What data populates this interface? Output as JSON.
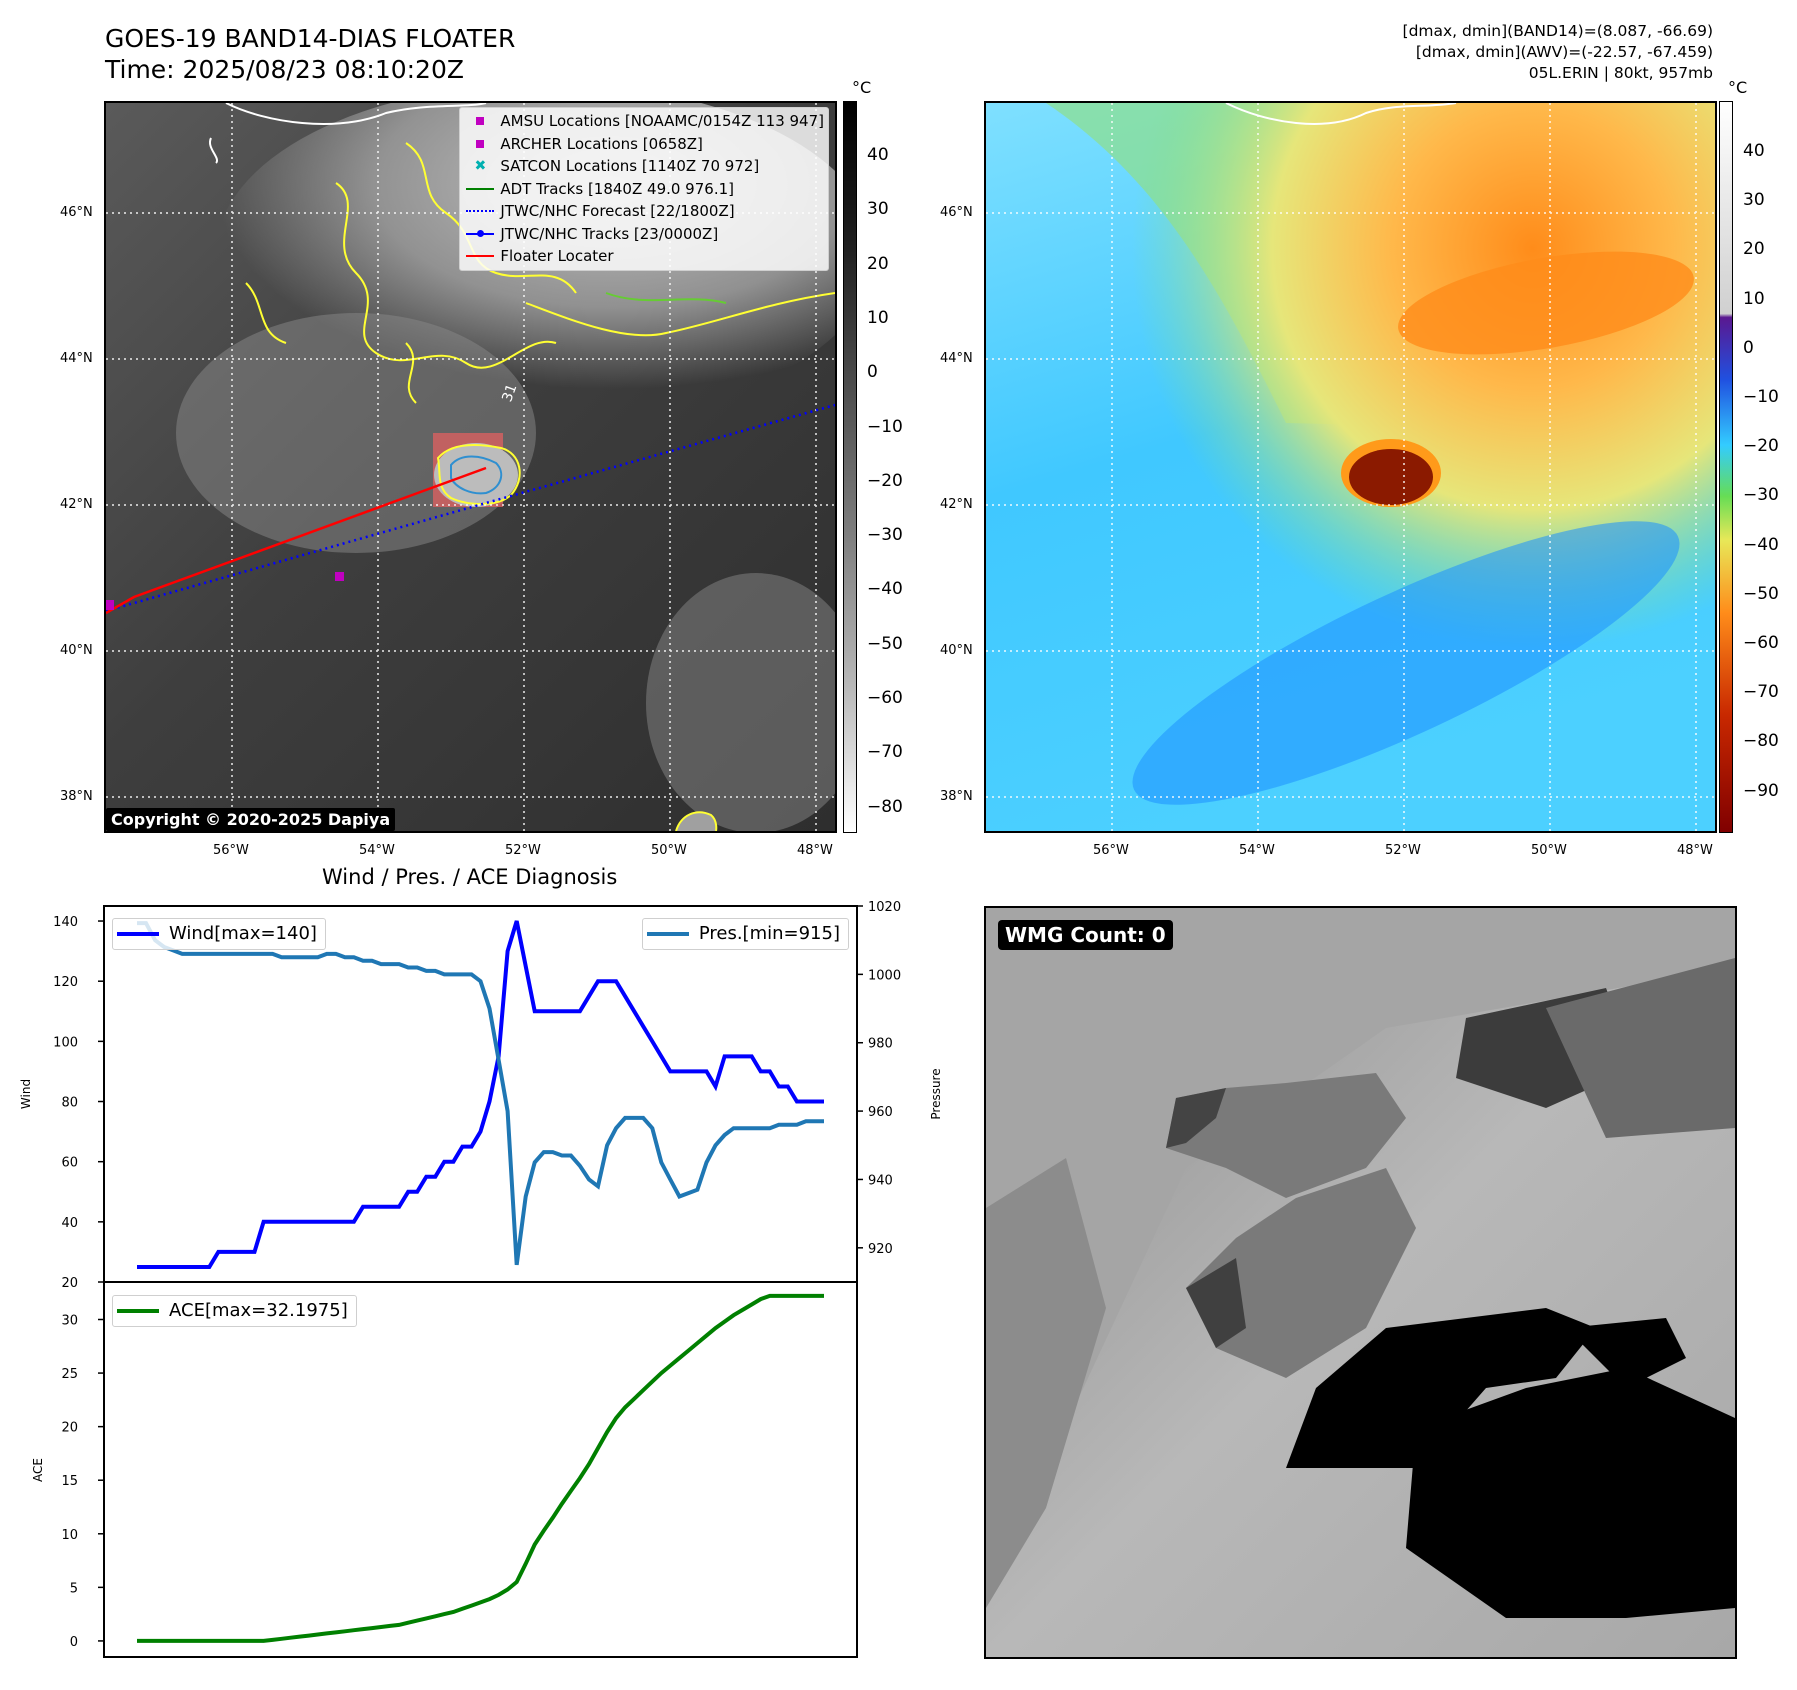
{
  "header": {
    "title_line1": "GOES-19 BAND14-DIAS FLOATER",
    "title_line2": "Time: 2025/08/23 08:10:20Z",
    "info_line1": "[dmax, dmin](BAND14)=(8.087, -66.69)",
    "info_line2": "[dmax, dmin](AWV)=(-22.57, -67.459)",
    "info_line3": "05L.ERIN | 80kt, 957mb"
  },
  "map": {
    "lat_labels": [
      "46°N",
      "44°N",
      "42°N",
      "40°N",
      "38°N"
    ],
    "lon_labels": [
      "56°W",
      "54°W",
      "52°W",
      "50°W",
      "48°W"
    ],
    "copyright": "Copyright © 2020-2025 Dapiya",
    "storm_label": "31",
    "legend": [
      {
        "label": "AMSU Locations [NOAAMC/0154Z 113 947]",
        "icon": "magenta-square-marker",
        "color": "#c000c0"
      },
      {
        "label": "ARCHER Locations [0658Z]",
        "icon": "magenta-square-marker",
        "color": "#c000c0"
      },
      {
        "label": "SATCON Locations [1140Z 70 972]",
        "icon": "cyan-x-marker",
        "color": "#00b0b0"
      },
      {
        "label": "ADT Tracks [1840Z 49.0 976.1]",
        "icon": "green-line",
        "color": "#008000"
      },
      {
        "label": "JTWC/NHC Forecast [22/1800Z]",
        "icon": "blue-dotted-line",
        "color": "#0000ff"
      },
      {
        "label": "JTWC/NHC Tracks [23/0000Z]",
        "icon": "blue-line-dot",
        "color": "#0000ff"
      },
      {
        "label": "Floater Locater",
        "icon": "red-line",
        "color": "#ff0000"
      }
    ],
    "colorbar_band14": {
      "unit": "°C",
      "ticks": [
        "40",
        "30",
        "20",
        "10",
        "0",
        "−10",
        "−20",
        "−30",
        "−40",
        "−50",
        "−60",
        "−70",
        "−80"
      ]
    },
    "colorbar_awv": {
      "unit": "°C",
      "ticks": [
        "40",
        "30",
        "20",
        "10",
        "0",
        "−10",
        "−20",
        "−30",
        "−40",
        "−50",
        "−60",
        "−70",
        "−80",
        "−90"
      ]
    }
  },
  "diagnosis": {
    "title": "Wind / Pres. / ACE Diagnosis",
    "wind_ylabel": "Wind",
    "pressure_ylabel": "Pressure",
    "ace_ylabel": "ACE",
    "wind_legend": "Wind[max=140]",
    "pres_legend": "Pres.[min=915]",
    "ace_legend": "ACE[max=32.1975]",
    "wind_color": "#0000ff",
    "pres_color": "#1f77b4",
    "ace_color": "#008000"
  },
  "wmg": {
    "label": "WMG Count: 0"
  },
  "chart_data": [
    {
      "type": "line",
      "title": "",
      "xlabel": "",
      "ylabel": "Wind",
      "ylim": [
        20,
        145
      ],
      "yticks": [
        20,
        40,
        60,
        80,
        100,
        120,
        140
      ],
      "series": [
        {
          "name": "Wind[max=140]",
          "axis": "left",
          "values": [
            25,
            25,
            25,
            25,
            25,
            25,
            25,
            25,
            25,
            30,
            30,
            30,
            30,
            30,
            40,
            40,
            40,
            40,
            40,
            40,
            40,
            40,
            40,
            40,
            40,
            45,
            45,
            45,
            45,
            45,
            50,
            50,
            55,
            55,
            60,
            60,
            65,
            65,
            70,
            80,
            95,
            130,
            140,
            125,
            110,
            110,
            110,
            110,
            110,
            110,
            115,
            120,
            120,
            120,
            115,
            110,
            105,
            100,
            95,
            90,
            90,
            90,
            90,
            90,
            85,
            95,
            95,
            95,
            95,
            90,
            90,
            85,
            85,
            80,
            80,
            80,
            80
          ]
        }
      ]
    },
    {
      "type": "line",
      "title": "",
      "xlabel": "",
      "ylabel": "Pressure",
      "ylim": [
        910,
        1020
      ],
      "yticks": [
        920,
        940,
        960,
        980,
        1000,
        1020
      ],
      "series": [
        {
          "name": "Pres.[min=915]",
          "axis": "right",
          "values": [
            1015,
            1015,
            1010,
            1008,
            1007,
            1006,
            1006,
            1006,
            1006,
            1006,
            1006,
            1006,
            1006,
            1006,
            1006,
            1006,
            1005,
            1005,
            1005,
            1005,
            1005,
            1006,
            1006,
            1005,
            1005,
            1004,
            1004,
            1003,
            1003,
            1003,
            1002,
            1002,
            1001,
            1001,
            1000,
            1000,
            1000,
            1000,
            998,
            990,
            975,
            960,
            915,
            935,
            945,
            948,
            948,
            947,
            947,
            944,
            940,
            938,
            950,
            955,
            958,
            958,
            958,
            955,
            945,
            940,
            935,
            936,
            937,
            945,
            950,
            953,
            955,
            955,
            955,
            955,
            955,
            956,
            956,
            956,
            957,
            957,
            957
          ]
        }
      ]
    },
    {
      "type": "line",
      "title": "",
      "xlabel": "",
      "ylabel": "ACE",
      "ylim": [
        -1.5,
        33.5
      ],
      "yticks": [
        0,
        5,
        10,
        15,
        20,
        25,
        30
      ],
      "series": [
        {
          "name": "ACE[max=32.1975]",
          "values": [
            0,
            0,
            0,
            0,
            0,
            0,
            0,
            0,
            0,
            0,
            0,
            0,
            0,
            0,
            0,
            0.1,
            0.2,
            0.3,
            0.4,
            0.5,
            0.6,
            0.7,
            0.8,
            0.9,
            1.0,
            1.1,
            1.2,
            1.3,
            1.4,
            1.5,
            1.7,
            1.9,
            2.1,
            2.3,
            2.5,
            2.7,
            3.0,
            3.3,
            3.6,
            3.9,
            4.3,
            4.8,
            5.5,
            7.2,
            9.0,
            10.3,
            11.5,
            12.8,
            14.0,
            15.2,
            16.5,
            18.0,
            19.5,
            20.8,
            21.8,
            22.6,
            23.4,
            24.2,
            25.0,
            25.7,
            26.4,
            27.1,
            27.8,
            28.5,
            29.2,
            29.8,
            30.4,
            30.9,
            31.4,
            31.9,
            32.2,
            32.2,
            32.2,
            32.2,
            32.2,
            32.2,
            32.2
          ]
        }
      ]
    }
  ]
}
